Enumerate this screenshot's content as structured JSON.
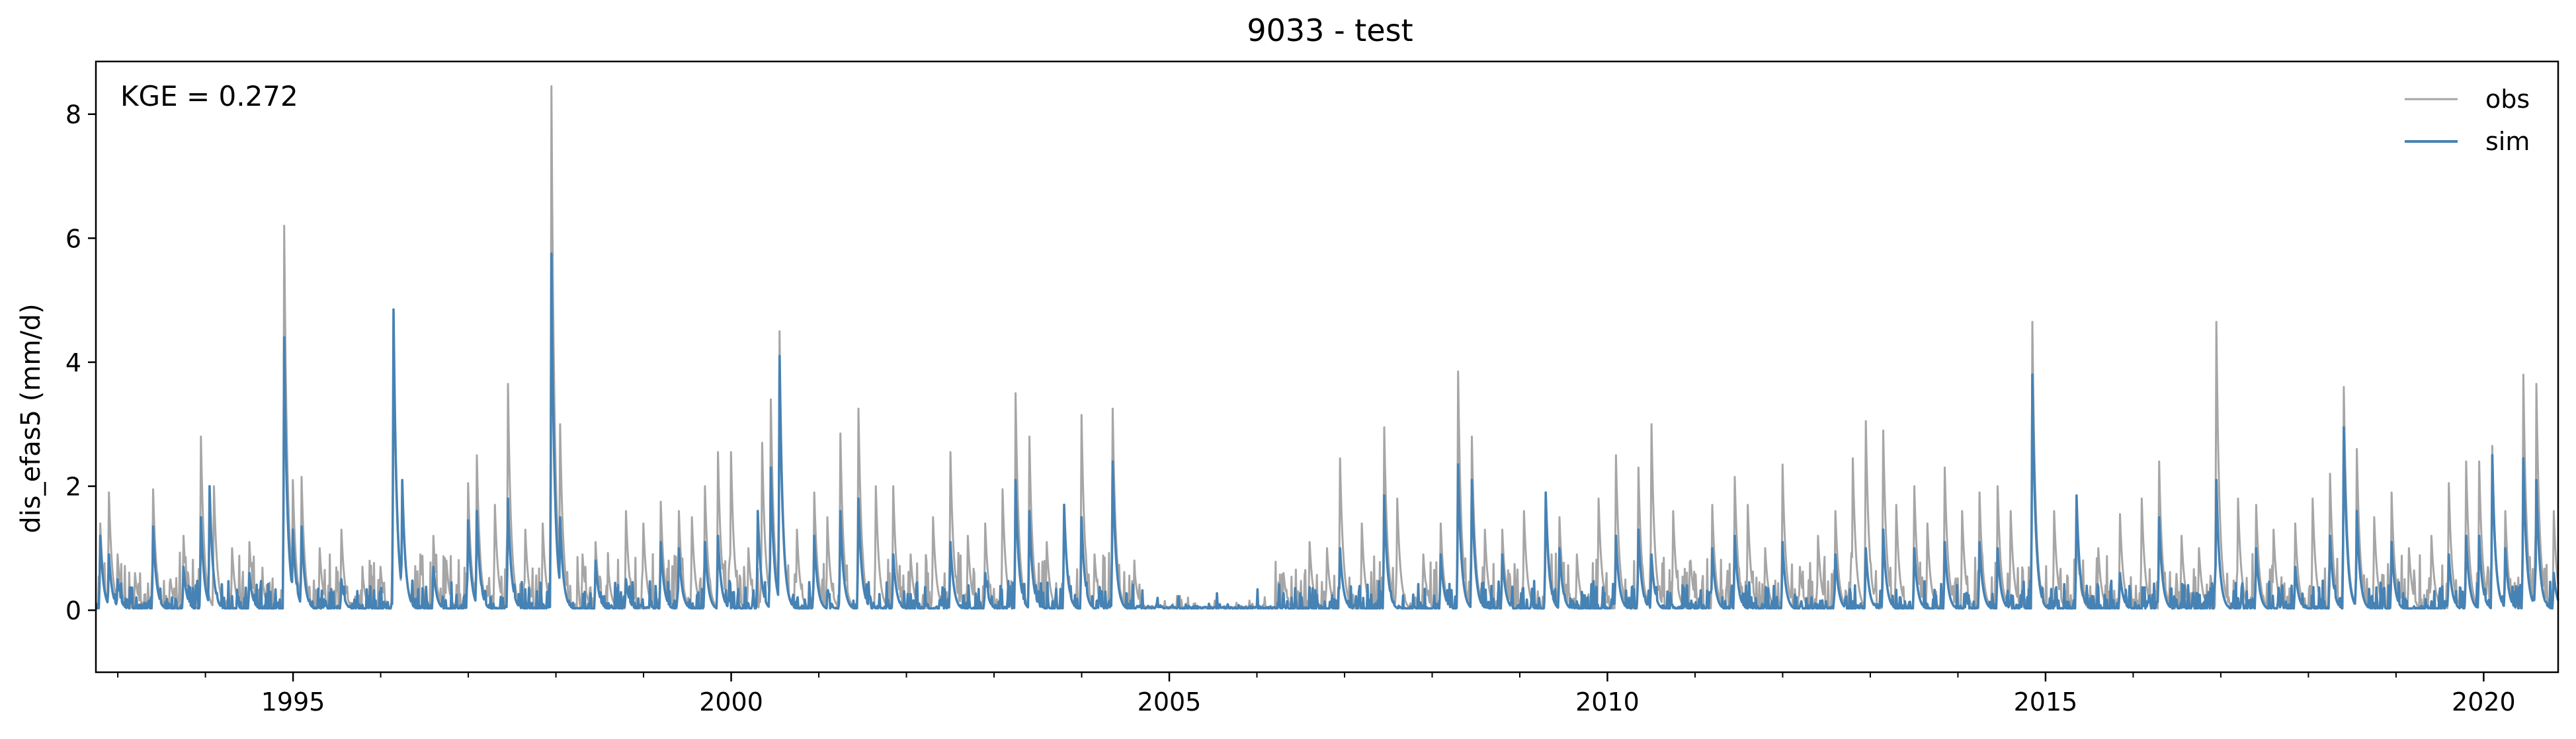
{
  "chart_data": {
    "type": "line",
    "title": "9033 - test",
    "xlabel": "",
    "ylabel": "dis_efas5 (mm/d)",
    "annotation": "KGE = 0.272",
    "xlim": [
      1992.75,
      2020.85
    ],
    "ylim": [
      -1.0,
      8.85
    ],
    "xticks": [
      {
        "value": 1995,
        "label": "1995"
      },
      {
        "value": 2000,
        "label": "2000"
      },
      {
        "value": 2005,
        "label": "2005"
      },
      {
        "value": 2010,
        "label": "2010"
      },
      {
        "value": 2015,
        "label": "2015"
      },
      {
        "value": 2020,
        "label": "2020"
      }
    ],
    "yticks": [
      {
        "value": 0,
        "label": "0"
      },
      {
        "value": 2,
        "label": "2"
      },
      {
        "value": 4,
        "label": "4"
      },
      {
        "value": 6,
        "label": "6"
      },
      {
        "value": 8,
        "label": "8"
      }
    ],
    "grid": false,
    "legend_position": "top-right",
    "series": [
      {
        "name": "obs",
        "color": "#a6a6a6",
        "peaks": [
          [
            1992.8,
            1.4
          ],
          [
            1992.9,
            1.9
          ],
          [
            1993.0,
            0.9
          ],
          [
            1993.2,
            0.6
          ],
          [
            1993.4,
            1.95
          ],
          [
            1993.6,
            0.5
          ],
          [
            1993.75,
            1.2
          ],
          [
            1993.95,
            2.8
          ],
          [
            1994.1,
            2.0
          ],
          [
            1994.3,
            1.0
          ],
          [
            1994.5,
            1.1
          ],
          [
            1994.65,
            0.5
          ],
          [
            1994.9,
            6.2
          ],
          [
            1995.0,
            2.1
          ],
          [
            1995.1,
            2.15
          ],
          [
            1995.3,
            1.0
          ],
          [
            1995.55,
            1.3
          ],
          [
            1995.8,
            0.5
          ],
          [
            1996.0,
            0.7
          ],
          [
            1996.15,
            4.5
          ],
          [
            1996.25,
            2.1
          ],
          [
            1996.45,
            0.9
          ],
          [
            1996.6,
            1.2
          ],
          [
            1996.75,
            0.8
          ],
          [
            1997.0,
            2.05
          ],
          [
            1997.1,
            2.5
          ],
          [
            1997.3,
            1.7
          ],
          [
            1997.45,
            3.65
          ],
          [
            1997.65,
            1.3
          ],
          [
            1997.85,
            1.4
          ],
          [
            1997.95,
            8.45
          ],
          [
            1998.05,
            3.0
          ],
          [
            1998.3,
            0.9
          ],
          [
            1998.45,
            1.1
          ],
          [
            1998.6,
            0.6
          ],
          [
            1998.8,
            1.6
          ],
          [
            1999.0,
            1.4
          ],
          [
            1999.2,
            1.75
          ],
          [
            1999.4,
            1.6
          ],
          [
            1999.55,
            1.5
          ],
          [
            1999.7,
            2.0
          ],
          [
            1999.85,
            2.55
          ],
          [
            2000.0,
            2.55
          ],
          [
            2000.2,
            1.0
          ],
          [
            2000.35,
            2.7
          ],
          [
            2000.45,
            3.4
          ],
          [
            2000.55,
            4.5
          ],
          [
            2000.75,
            1.3
          ],
          [
            2000.95,
            1.9
          ],
          [
            2001.1,
            1.5
          ],
          [
            2001.25,
            2.85
          ],
          [
            2001.45,
            3.25
          ],
          [
            2001.65,
            2.0
          ],
          [
            2001.85,
            2.0
          ],
          [
            2002.05,
            0.9
          ],
          [
            2002.3,
            1.5
          ],
          [
            2002.5,
            2.55
          ],
          [
            2002.7,
            1.2
          ],
          [
            2002.9,
            1.4
          ],
          [
            2003.1,
            1.95
          ],
          [
            2003.25,
            3.5
          ],
          [
            2003.4,
            2.8
          ],
          [
            2003.6,
            1.1
          ],
          [
            2003.8,
            1.6
          ],
          [
            2004.0,
            3.15
          ],
          [
            2004.15,
            0.9
          ],
          [
            2004.35,
            3.25
          ],
          [
            2004.6,
            0.7
          ],
          [
            2004.85,
            0.6
          ],
          [
            2005.1,
            0.4
          ],
          [
            2005.5,
            0.3
          ],
          [
            2005.9,
            0.4
          ],
          [
            2006.3,
            0.6
          ],
          [
            2006.6,
            1.1
          ],
          [
            2006.8,
            1.0
          ],
          [
            2006.95,
            2.45
          ],
          [
            2007.2,
            1.4
          ],
          [
            2007.45,
            2.95
          ],
          [
            2007.6,
            1.8
          ],
          [
            2007.9,
            0.9
          ],
          [
            2008.1,
            1.4
          ],
          [
            2008.3,
            3.85
          ],
          [
            2008.45,
            2.8
          ],
          [
            2008.6,
            1.3
          ],
          [
            2008.8,
            1.3
          ],
          [
            2009.05,
            1.6
          ],
          [
            2009.3,
            1.65
          ],
          [
            2009.45,
            1.5
          ],
          [
            2009.65,
            0.9
          ],
          [
            2009.9,
            1.8
          ],
          [
            2010.1,
            2.5
          ],
          [
            2010.35,
            2.3
          ],
          [
            2010.5,
            3.0
          ],
          [
            2010.75,
            1.6
          ],
          [
            2010.95,
            0.8
          ],
          [
            2011.2,
            1.7
          ],
          [
            2011.45,
            2.15
          ],
          [
            2011.6,
            1.7
          ],
          [
            2011.8,
            1.0
          ],
          [
            2012.0,
            2.35
          ],
          [
            2012.2,
            0.7
          ],
          [
            2012.4,
            1.2
          ],
          [
            2012.6,
            1.6
          ],
          [
            2012.8,
            2.45
          ],
          [
            2012.95,
            3.05
          ],
          [
            2013.15,
            2.9
          ],
          [
            2013.3,
            1.7
          ],
          [
            2013.5,
            2.0
          ],
          [
            2013.65,
            1.4
          ],
          [
            2013.85,
            2.3
          ],
          [
            2014.05,
            1.6
          ],
          [
            2014.25,
            1.9
          ],
          [
            2014.45,
            2.0
          ],
          [
            2014.6,
            1.6
          ],
          [
            2014.85,
            4.65
          ],
          [
            2015.1,
            1.6
          ],
          [
            2015.35,
            1.4
          ],
          [
            2015.6,
            1.0
          ],
          [
            2015.85,
            1.55
          ],
          [
            2016.1,
            1.8
          ],
          [
            2016.3,
            2.4
          ],
          [
            2016.55,
            1.2
          ],
          [
            2016.75,
            1.0
          ],
          [
            2016.95,
            4.65
          ],
          [
            2017.2,
            1.8
          ],
          [
            2017.4,
            1.7
          ],
          [
            2017.6,
            1.3
          ],
          [
            2017.85,
            1.4
          ],
          [
            2018.05,
            1.8
          ],
          [
            2018.25,
            2.2
          ],
          [
            2018.4,
            3.6
          ],
          [
            2018.55,
            2.6
          ],
          [
            2018.75,
            1.5
          ],
          [
            2018.95,
            1.9
          ],
          [
            2019.15,
            1.0
          ],
          [
            2019.4,
            1.2
          ],
          [
            2019.6,
            2.05
          ],
          [
            2019.8,
            2.4
          ],
          [
            2019.95,
            2.4
          ],
          [
            2020.1,
            2.65
          ],
          [
            2020.25,
            1.6
          ],
          [
            2020.45,
            3.8
          ],
          [
            2020.6,
            3.65
          ],
          [
            2020.8,
            1.6
          ]
        ]
      },
      {
        "name": "sim",
        "color": "#4682b4",
        "peaks": [
          [
            1992.8,
            1.2
          ],
          [
            1992.9,
            0.9
          ],
          [
            1993.0,
            0.5
          ],
          [
            1993.4,
            1.35
          ],
          [
            1993.75,
            0.7
          ],
          [
            1993.95,
            1.5
          ],
          [
            1994.05,
            2.0
          ],
          [
            1994.5,
            0.6
          ],
          [
            1994.9,
            4.4
          ],
          [
            1995.0,
            1.3
          ],
          [
            1995.1,
            1.35
          ],
          [
            1995.55,
            0.5
          ],
          [
            1996.15,
            4.85
          ],
          [
            1996.25,
            2.1
          ],
          [
            1996.6,
            0.7
          ],
          [
            1997.0,
            1.45
          ],
          [
            1997.1,
            1.6
          ],
          [
            1997.45,
            1.8
          ],
          [
            1997.95,
            5.75
          ],
          [
            1998.05,
            1.5
          ],
          [
            1998.45,
            0.8
          ],
          [
            1998.8,
            0.5
          ],
          [
            1999.2,
            1.1
          ],
          [
            1999.4,
            1.0
          ],
          [
            1999.7,
            1.1
          ],
          [
            1999.85,
            1.2
          ],
          [
            2000.3,
            1.6
          ],
          [
            2000.45,
            2.3
          ],
          [
            2000.55,
            4.1
          ],
          [
            2000.95,
            1.2
          ],
          [
            2001.25,
            1.6
          ],
          [
            2001.45,
            1.8
          ],
          [
            2001.85,
            0.9
          ],
          [
            2002.5,
            1.1
          ],
          [
            2002.9,
            0.6
          ],
          [
            2003.25,
            2.1
          ],
          [
            2003.4,
            1.6
          ],
          [
            2003.8,
            1.7
          ],
          [
            2004.0,
            1.5
          ],
          [
            2004.35,
            2.4
          ],
          [
            2004.85,
            0.3
          ],
          [
            2006.95,
            1.0
          ],
          [
            2007.45,
            1.85
          ],
          [
            2008.1,
            0.9
          ],
          [
            2008.3,
            2.35
          ],
          [
            2008.45,
            2.1
          ],
          [
            2008.8,
            0.9
          ],
          [
            2009.3,
            1.9
          ],
          [
            2009.45,
            1.0
          ],
          [
            2010.1,
            1.2
          ],
          [
            2010.35,
            1.3
          ],
          [
            2010.5,
            0.9
          ],
          [
            2011.2,
            1.0
          ],
          [
            2011.45,
            1.2
          ],
          [
            2012.0,
            1.1
          ],
          [
            2012.6,
            0.9
          ],
          [
            2012.95,
            1.0
          ],
          [
            2013.15,
            1.3
          ],
          [
            2013.5,
            1.0
          ],
          [
            2013.85,
            1.1
          ],
          [
            2014.25,
            1.1
          ],
          [
            2014.45,
            1.0
          ],
          [
            2014.85,
            3.8
          ],
          [
            2015.35,
            1.85
          ],
          [
            2015.85,
            0.6
          ],
          [
            2016.3,
            1.5
          ],
          [
            2016.95,
            2.1
          ],
          [
            2017.4,
            1.0
          ],
          [
            2017.85,
            0.7
          ],
          [
            2018.25,
            1.2
          ],
          [
            2018.4,
            2.95
          ],
          [
            2018.55,
            1.6
          ],
          [
            2018.95,
            1.1
          ],
          [
            2019.6,
            0.9
          ],
          [
            2019.8,
            1.2
          ],
          [
            2019.95,
            1.2
          ],
          [
            2020.1,
            2.5
          ],
          [
            2020.25,
            1.0
          ],
          [
            2020.45,
            2.45
          ],
          [
            2020.6,
            2.1
          ],
          [
            2020.8,
            0.6
          ]
        ]
      }
    ]
  }
}
